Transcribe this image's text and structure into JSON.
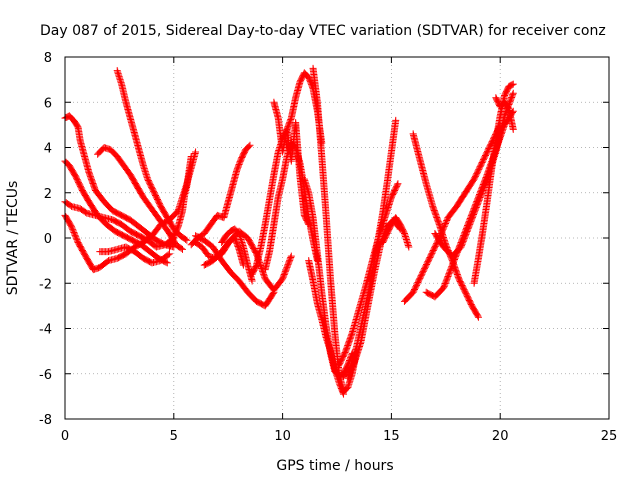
{
  "chart_data": {
    "type": "scatter",
    "title": "Day 087 of 2015, Sidereal Day-to-day VTEC variation (SDTVAR) for receiver conz",
    "xlabel": "GPS time / hours",
    "ylabel": "SDTVAR / TECUs",
    "xlim": [
      0,
      25
    ],
    "ylim": [
      -8,
      8
    ],
    "xticks": [
      "0",
      "5",
      "10",
      "15",
      "20",
      "25"
    ],
    "yticks": [
      "-8",
      "-6",
      "-4",
      "-2",
      "0",
      "2",
      "4",
      "6",
      "8"
    ],
    "grid": true,
    "marker": "plus",
    "colors": {
      "series": "#ff0000",
      "axis": "#000000",
      "grid": "#a0a0a0"
    },
    "series": [
      {
        "x": [
          0.0,
          0.3,
          0.6,
          1.0,
          1.3,
          1.6,
          2.0,
          2.4,
          2.8,
          3.2,
          3.6,
          4.0,
          4.4,
          4.8,
          5.2,
          5.6,
          6.0
        ],
        "y": [
          1.0,
          0.5,
          -0.2,
          -0.9,
          -1.4,
          -1.3,
          -1.0,
          -0.9,
          -0.7,
          -0.4,
          -0.2,
          0.1,
          0.6,
          0.8,
          1.2,
          2.4,
          3.8
        ]
      },
      {
        "x": [
          0.0,
          0.3,
          0.7,
          1.0,
          1.4,
          1.8,
          2.2,
          2.6,
          3.0,
          3.4,
          3.8,
          4.2,
          4.6,
          5.0
        ],
        "y": [
          1.6,
          1.4,
          1.3,
          1.1,
          1.0,
          0.9,
          0.8,
          0.6,
          0.3,
          0.1,
          -0.1,
          -0.4,
          -0.3,
          0.0
        ]
      },
      {
        "x": [
          0.0,
          0.2,
          0.5,
          0.8,
          1.1,
          1.5,
          1.9,
          2.3,
          2.7,
          3.1,
          3.5,
          3.9,
          4.3,
          4.7
        ],
        "y": [
          3.4,
          3.2,
          2.7,
          2.1,
          1.6,
          1.0,
          0.6,
          0.3,
          0.1,
          -0.1,
          -0.3,
          -0.6,
          -0.9,
          -1.1
        ]
      },
      {
        "x": [
          0.0,
          0.2,
          0.4,
          0.6,
          0.7,
          0.9,
          1.1,
          1.4,
          1.8,
          2.2,
          2.6,
          3.0,
          3.4,
          3.8,
          4.2,
          4.6,
          5.0
        ],
        "y": [
          5.3,
          5.4,
          5.2,
          4.9,
          4.3,
          3.6,
          2.9,
          2.1,
          1.6,
          1.2,
          1.0,
          0.8,
          0.5,
          0.2,
          -0.1,
          -0.3,
          -0.4
        ]
      },
      {
        "x": [
          1.5,
          1.8,
          2.1,
          2.4,
          2.7,
          3.0,
          3.3,
          3.6,
          3.9,
          4.2,
          4.5,
          4.8,
          5.1,
          5.4
        ],
        "y": [
          3.7,
          4.0,
          3.9,
          3.6,
          3.2,
          2.8,
          2.3,
          1.8,
          1.4,
          1.0,
          0.6,
          0.2,
          -0.3,
          -0.5
        ]
      },
      {
        "x": [
          2.4,
          2.6,
          2.8,
          3.0,
          3.2,
          3.4,
          3.6,
          3.8,
          4.1,
          4.4,
          4.7,
          5.0,
          5.3,
          5.6
        ],
        "y": [
          7.4,
          6.8,
          6.0,
          5.3,
          4.6,
          3.9,
          3.2,
          2.6,
          2.0,
          1.4,
          0.9,
          0.4,
          0.1,
          -0.1
        ]
      },
      {
        "x": [
          1.6,
          2.0,
          2.4,
          2.8,
          3.2,
          3.6,
          4.0,
          4.4,
          4.8
        ],
        "y": [
          -0.6,
          -0.6,
          -0.5,
          -0.4,
          -0.6,
          -0.9,
          -1.1,
          -1.0,
          -0.7
        ]
      },
      {
        "x": [
          4.8,
          5.0,
          5.2,
          5.4,
          5.5,
          5.6,
          5.8
        ],
        "y": [
          -0.4,
          0.1,
          0.5,
          1.2,
          1.9,
          2.3,
          3.6
        ]
      },
      {
        "x": [
          5.8,
          6.1,
          6.4,
          6.7,
          7.0,
          7.3,
          7.5,
          7.7,
          7.9,
          8.1,
          8.3,
          8.5
        ],
        "y": [
          -0.3,
          0.0,
          0.2,
          0.6,
          1.0,
          0.9,
          1.6,
          2.3,
          3.0,
          3.5,
          3.9,
          4.1
        ]
      },
      {
        "x": [
          6.0,
          6.3,
          6.6,
          6.9,
          7.2,
          7.4,
          7.6,
          7.8,
          8.0,
          8.2
        ],
        "y": [
          -0.2,
          -0.4,
          -0.8,
          -0.9,
          -0.7,
          -0.4,
          -0.1,
          0.0,
          -0.5,
          -1.2
        ]
      },
      {
        "x": [
          6.0,
          6.4,
          6.8,
          7.2,
          7.6,
          8.0,
          8.4,
          8.8,
          9.2,
          9.6
        ],
        "y": [
          0.1,
          -0.1,
          -0.4,
          -1.0,
          -1.5,
          -1.9,
          -2.4,
          -2.8,
          -3.0,
          -2.4
        ]
      },
      {
        "x": [
          6.4,
          6.8,
          7.2,
          7.6,
          8.0,
          8.4,
          8.8,
          9.2,
          9.6,
          10.0,
          10.4
        ],
        "y": [
          -1.2,
          -1.0,
          -0.6,
          -0.1,
          0.3,
          0.0,
          -0.7,
          -1.8,
          -2.3,
          -1.8,
          -0.8
        ]
      },
      {
        "x": [
          7.2,
          7.4,
          7.6,
          7.8,
          8.0,
          8.2,
          8.4,
          8.6
        ],
        "y": [
          -0.2,
          0.1,
          0.3,
          0.4,
          0.2,
          -0.4,
          -1.2,
          -1.9
        ]
      },
      {
        "x": [
          8.6,
          8.8,
          9.0,
          9.2,
          9.4,
          9.6,
          9.8,
          10.0,
          10.2,
          10.4,
          10.6,
          10.8,
          11.0,
          11.2,
          11.4,
          11.6,
          11.8
        ],
        "y": [
          -1.6,
          -1.2,
          -0.4,
          0.6,
          1.7,
          2.8,
          3.8,
          4.4,
          4.8,
          5.3,
          6.2,
          6.9,
          7.3,
          7.1,
          6.6,
          5.6,
          4.2
        ]
      },
      {
        "x": [
          9.2,
          9.4,
          9.6,
          9.8,
          10.0,
          10.2,
          10.4,
          10.6,
          10.8,
          11.0,
          11.2,
          11.4,
          11.6
        ],
        "y": [
          -1.4,
          -0.6,
          0.6,
          1.8,
          2.6,
          3.6,
          4.2,
          4.0,
          3.3,
          2.2,
          0.9,
          -0.1,
          -1.0
        ]
      },
      {
        "x": [
          9.6,
          9.8,
          10.0,
          10.2,
          10.4,
          10.6,
          10.8,
          11.0,
          11.2
        ],
        "y": [
          6.0,
          5.3,
          3.8,
          4.8,
          3.4,
          5.1,
          2.7,
          1.0,
          0.6
        ]
      },
      {
        "x": [
          11.0,
          11.2,
          11.4,
          11.6,
          11.8,
          12.0,
          12.2,
          12.4,
          12.6,
          12.8,
          13.0,
          13.2
        ],
        "y": [
          2.6,
          2.0,
          0.9,
          -0.7,
          -2.4,
          -3.9,
          -5.1,
          -5.9,
          -6.1,
          -6.0,
          -5.6,
          -5.1
        ]
      },
      {
        "x": [
          11.4,
          11.6,
          11.8,
          12.0,
          12.2,
          12.4,
          12.6,
          12.8,
          13.0,
          13.2,
          13.4
        ],
        "y": [
          7.5,
          6.0,
          3.6,
          1.0,
          -1.8,
          -4.2,
          -6.0,
          -6.8,
          -6.6,
          -6.0,
          -5.0
        ]
      },
      {
        "x": [
          11.2,
          11.4,
          11.6,
          11.8,
          12.0,
          12.2,
          12.4,
          12.6,
          12.8
        ],
        "y": [
          -1.0,
          -1.9,
          -2.9,
          -3.6,
          -4.4,
          -5.0,
          -5.8,
          -6.4,
          -6.9
        ]
      },
      {
        "x": [
          12.6,
          12.9,
          13.2,
          13.5,
          13.8,
          14.1,
          14.4,
          14.7,
          15.0,
          15.3
        ],
        "y": [
          -5.6,
          -5.0,
          -4.2,
          -3.2,
          -2.2,
          -1.1,
          0.0,
          0.9,
          1.8,
          2.4
        ]
      },
      {
        "x": [
          12.8,
          13.1,
          13.4,
          13.7,
          14.0,
          14.2,
          14.4,
          14.6,
          14.8,
          15.0,
          15.2
        ],
        "y": [
          -6.1,
          -5.8,
          -4.8,
          -3.5,
          -2.2,
          -1.1,
          0.0,
          1.1,
          2.4,
          3.8,
          5.2
        ]
      },
      {
        "x": [
          13.0,
          13.3,
          13.6,
          13.9,
          14.2,
          14.5,
          14.8,
          15.1,
          15.4
        ],
        "y": [
          -6.2,
          -5.5,
          -4.6,
          -3.1,
          -1.6,
          -0.3,
          0.5,
          0.8,
          0.4
        ]
      },
      {
        "x": [
          14.6,
          14.8,
          15.0,
          15.2,
          15.4,
          15.6,
          15.8
        ],
        "y": [
          -0.2,
          0.2,
          0.6,
          0.9,
          0.6,
          0.2,
          -0.4
        ]
      },
      {
        "x": [
          15.6,
          16.0,
          16.4,
          16.8,
          17.2,
          17.6,
          18.0,
          18.4,
          18.8,
          19.2,
          19.6,
          20.0
        ],
        "y": [
          -2.8,
          -2.4,
          -1.6,
          -0.8,
          0.0,
          0.9,
          1.4,
          2.0,
          2.6,
          3.4,
          4.2,
          5.0
        ]
      },
      {
        "x": [
          16.0,
          16.3,
          16.6,
          16.9,
          17.2,
          17.5,
          17.8,
          18.1,
          18.4,
          18.7,
          19.0
        ],
        "y": [
          4.6,
          3.5,
          2.4,
          1.4,
          0.6,
          -0.3,
          -1.0,
          -1.8,
          -2.4,
          -3.0,
          -3.5
        ]
      },
      {
        "x": [
          16.6,
          17.0,
          17.4,
          17.8,
          18.2,
          18.6,
          19.0,
          19.4,
          19.8,
          20.2,
          20.6
        ],
        "y": [
          -2.4,
          -2.6,
          -2.2,
          -1.2,
          -0.2,
          0.8,
          1.8,
          2.8,
          3.9,
          5.0,
          5.6
        ]
      },
      {
        "x": [
          17.0,
          17.4,
          17.8,
          18.2,
          18.6,
          19.0,
          19.4,
          19.8,
          20.2,
          20.6
        ],
        "y": [
          0.2,
          -0.4,
          -0.8,
          -0.4,
          0.6,
          1.6,
          2.6,
          3.8,
          5.4,
          6.4
        ]
      },
      {
        "x": [
          18.8,
          19.0,
          19.2,
          19.4,
          19.6,
          19.8,
          20.0,
          20.2,
          20.4,
          20.6
        ],
        "y": [
          -2.0,
          -0.9,
          0.3,
          1.6,
          3.0,
          4.3,
          5.4,
          6.3,
          6.7,
          6.8
        ]
      },
      {
        "x": [
          19.8,
          20.0,
          20.2,
          20.4,
          20.6
        ],
        "y": [
          6.2,
          5.8,
          6.0,
          5.7,
          4.8
        ]
      }
    ]
  }
}
